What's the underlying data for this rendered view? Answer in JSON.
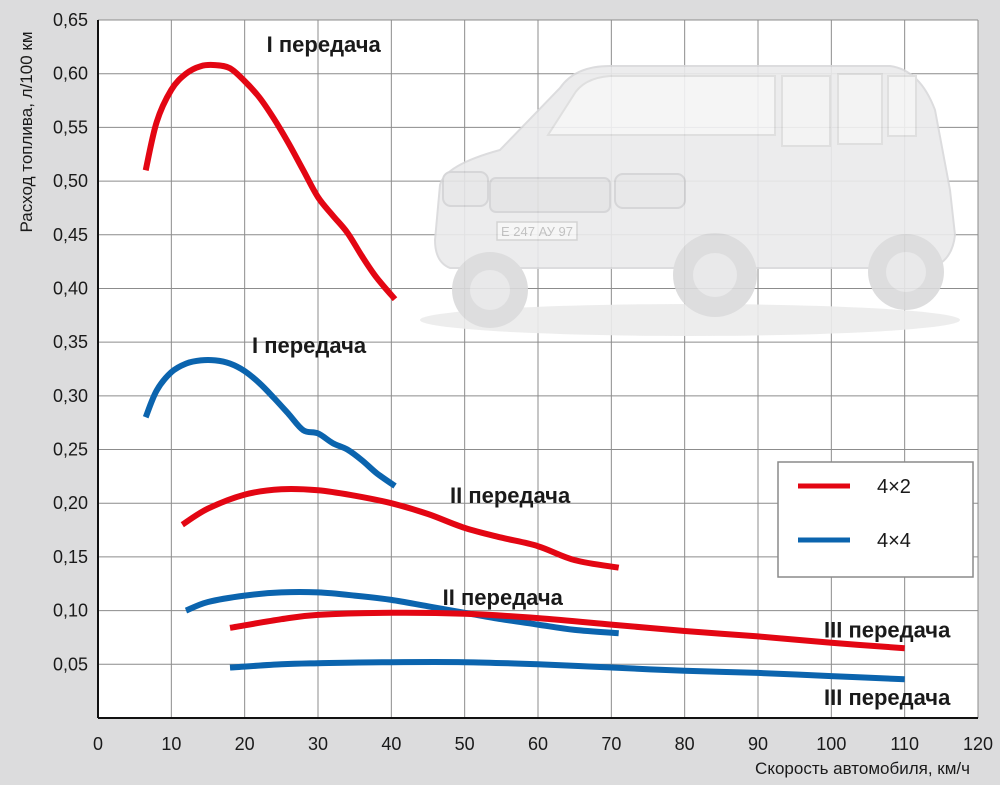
{
  "chart_data": {
    "type": "line",
    "title": "",
    "xlabel": "Скорость автомобиля, км/ч",
    "ylabel": "Расход топлива, л/100 км",
    "xlim": [
      0,
      120
    ],
    "ylim": [
      0,
      0.65
    ],
    "x_ticks": [
      "0",
      "10",
      "20",
      "30",
      "40",
      "50",
      "60",
      "70",
      "80",
      "90",
      "100",
      "110",
      "120"
    ],
    "y_ticks": [
      "0,05",
      "0,10",
      "0,15",
      "0,20",
      "0,25",
      "0,30",
      "0,35",
      "0,40",
      "0,45",
      "0,50",
      "0,55",
      "0,60",
      "0,65"
    ],
    "grid": true,
    "legend": [
      {
        "label": "4×2",
        "color": "#e30613"
      },
      {
        "label": "4×4",
        "color": "#0b64ae"
      }
    ],
    "series": [
      {
        "name": "I передача",
        "drive": "4×2",
        "color": "#e30613",
        "x": [
          6.5,
          8,
          10,
          12,
          14,
          16,
          18,
          20,
          22,
          24,
          26,
          28,
          30,
          32,
          34,
          36,
          38,
          40.5
        ],
        "y": [
          0.51,
          0.555,
          0.585,
          0.6,
          0.607,
          0.608,
          0.605,
          0.593,
          0.578,
          0.558,
          0.535,
          0.51,
          0.485,
          0.468,
          0.452,
          0.43,
          0.41,
          0.39
        ]
      },
      {
        "name": "I передача",
        "drive": "4×4",
        "color": "#0b64ae",
        "x": [
          6.5,
          8,
          10,
          12,
          14,
          16,
          18,
          20,
          22,
          24,
          26,
          28,
          30,
          32,
          34,
          36,
          38,
          40.5
        ],
        "y": [
          0.28,
          0.305,
          0.322,
          0.33,
          0.333,
          0.333,
          0.33,
          0.323,
          0.312,
          0.298,
          0.283,
          0.268,
          0.265,
          0.256,
          0.25,
          0.24,
          0.228,
          0.216
        ]
      },
      {
        "name": "II передача",
        "drive": "4×2",
        "color": "#e30613",
        "x": [
          11.5,
          15,
          20,
          25,
          30,
          35,
          40,
          45,
          50,
          55,
          60,
          65,
          71
        ],
        "y": [
          0.18,
          0.195,
          0.208,
          0.213,
          0.212,
          0.207,
          0.2,
          0.19,
          0.177,
          0.168,
          0.16,
          0.147,
          0.14
        ]
      },
      {
        "name": "II передача",
        "drive": "4×4",
        "color": "#0b64ae",
        "x": [
          12,
          15,
          20,
          25,
          30,
          35,
          40,
          45,
          50,
          55,
          60,
          65,
          71
        ],
        "y": [
          0.1,
          0.108,
          0.114,
          0.117,
          0.117,
          0.114,
          0.11,
          0.104,
          0.098,
          0.092,
          0.087,
          0.082,
          0.079
        ]
      },
      {
        "name": "III передача",
        "drive": "4×2",
        "color": "#e30613",
        "x": [
          18,
          25,
          30,
          40,
          50,
          60,
          70,
          80,
          90,
          100,
          110
        ],
        "y": [
          0.084,
          0.092,
          0.096,
          0.098,
          0.097,
          0.093,
          0.087,
          0.081,
          0.076,
          0.07,
          0.065
        ]
      },
      {
        "name": "III передача",
        "drive": "4×4",
        "color": "#0b64ae",
        "x": [
          18,
          25,
          30,
          40,
          50,
          60,
          70,
          80,
          90,
          100,
          110
        ],
        "y": [
          0.047,
          0.05,
          0.051,
          0.052,
          0.052,
          0.05,
          0.047,
          0.044,
          0.042,
          0.039,
          0.036
        ]
      }
    ],
    "annotations": [
      {
        "text": "I передача",
        "at": [
          23,
          0.62
        ]
      },
      {
        "text": "I передача",
        "at": [
          21,
          0.34
        ]
      },
      {
        "text": "II передача",
        "at": [
          48,
          0.2
        ]
      },
      {
        "text": "II передача",
        "at": [
          47,
          0.105
        ]
      },
      {
        "text": "III передача",
        "at": [
          99,
          0.075
        ]
      },
      {
        "text": "III передача",
        "at": [
          99,
          0.012
        ]
      }
    ]
  }
}
